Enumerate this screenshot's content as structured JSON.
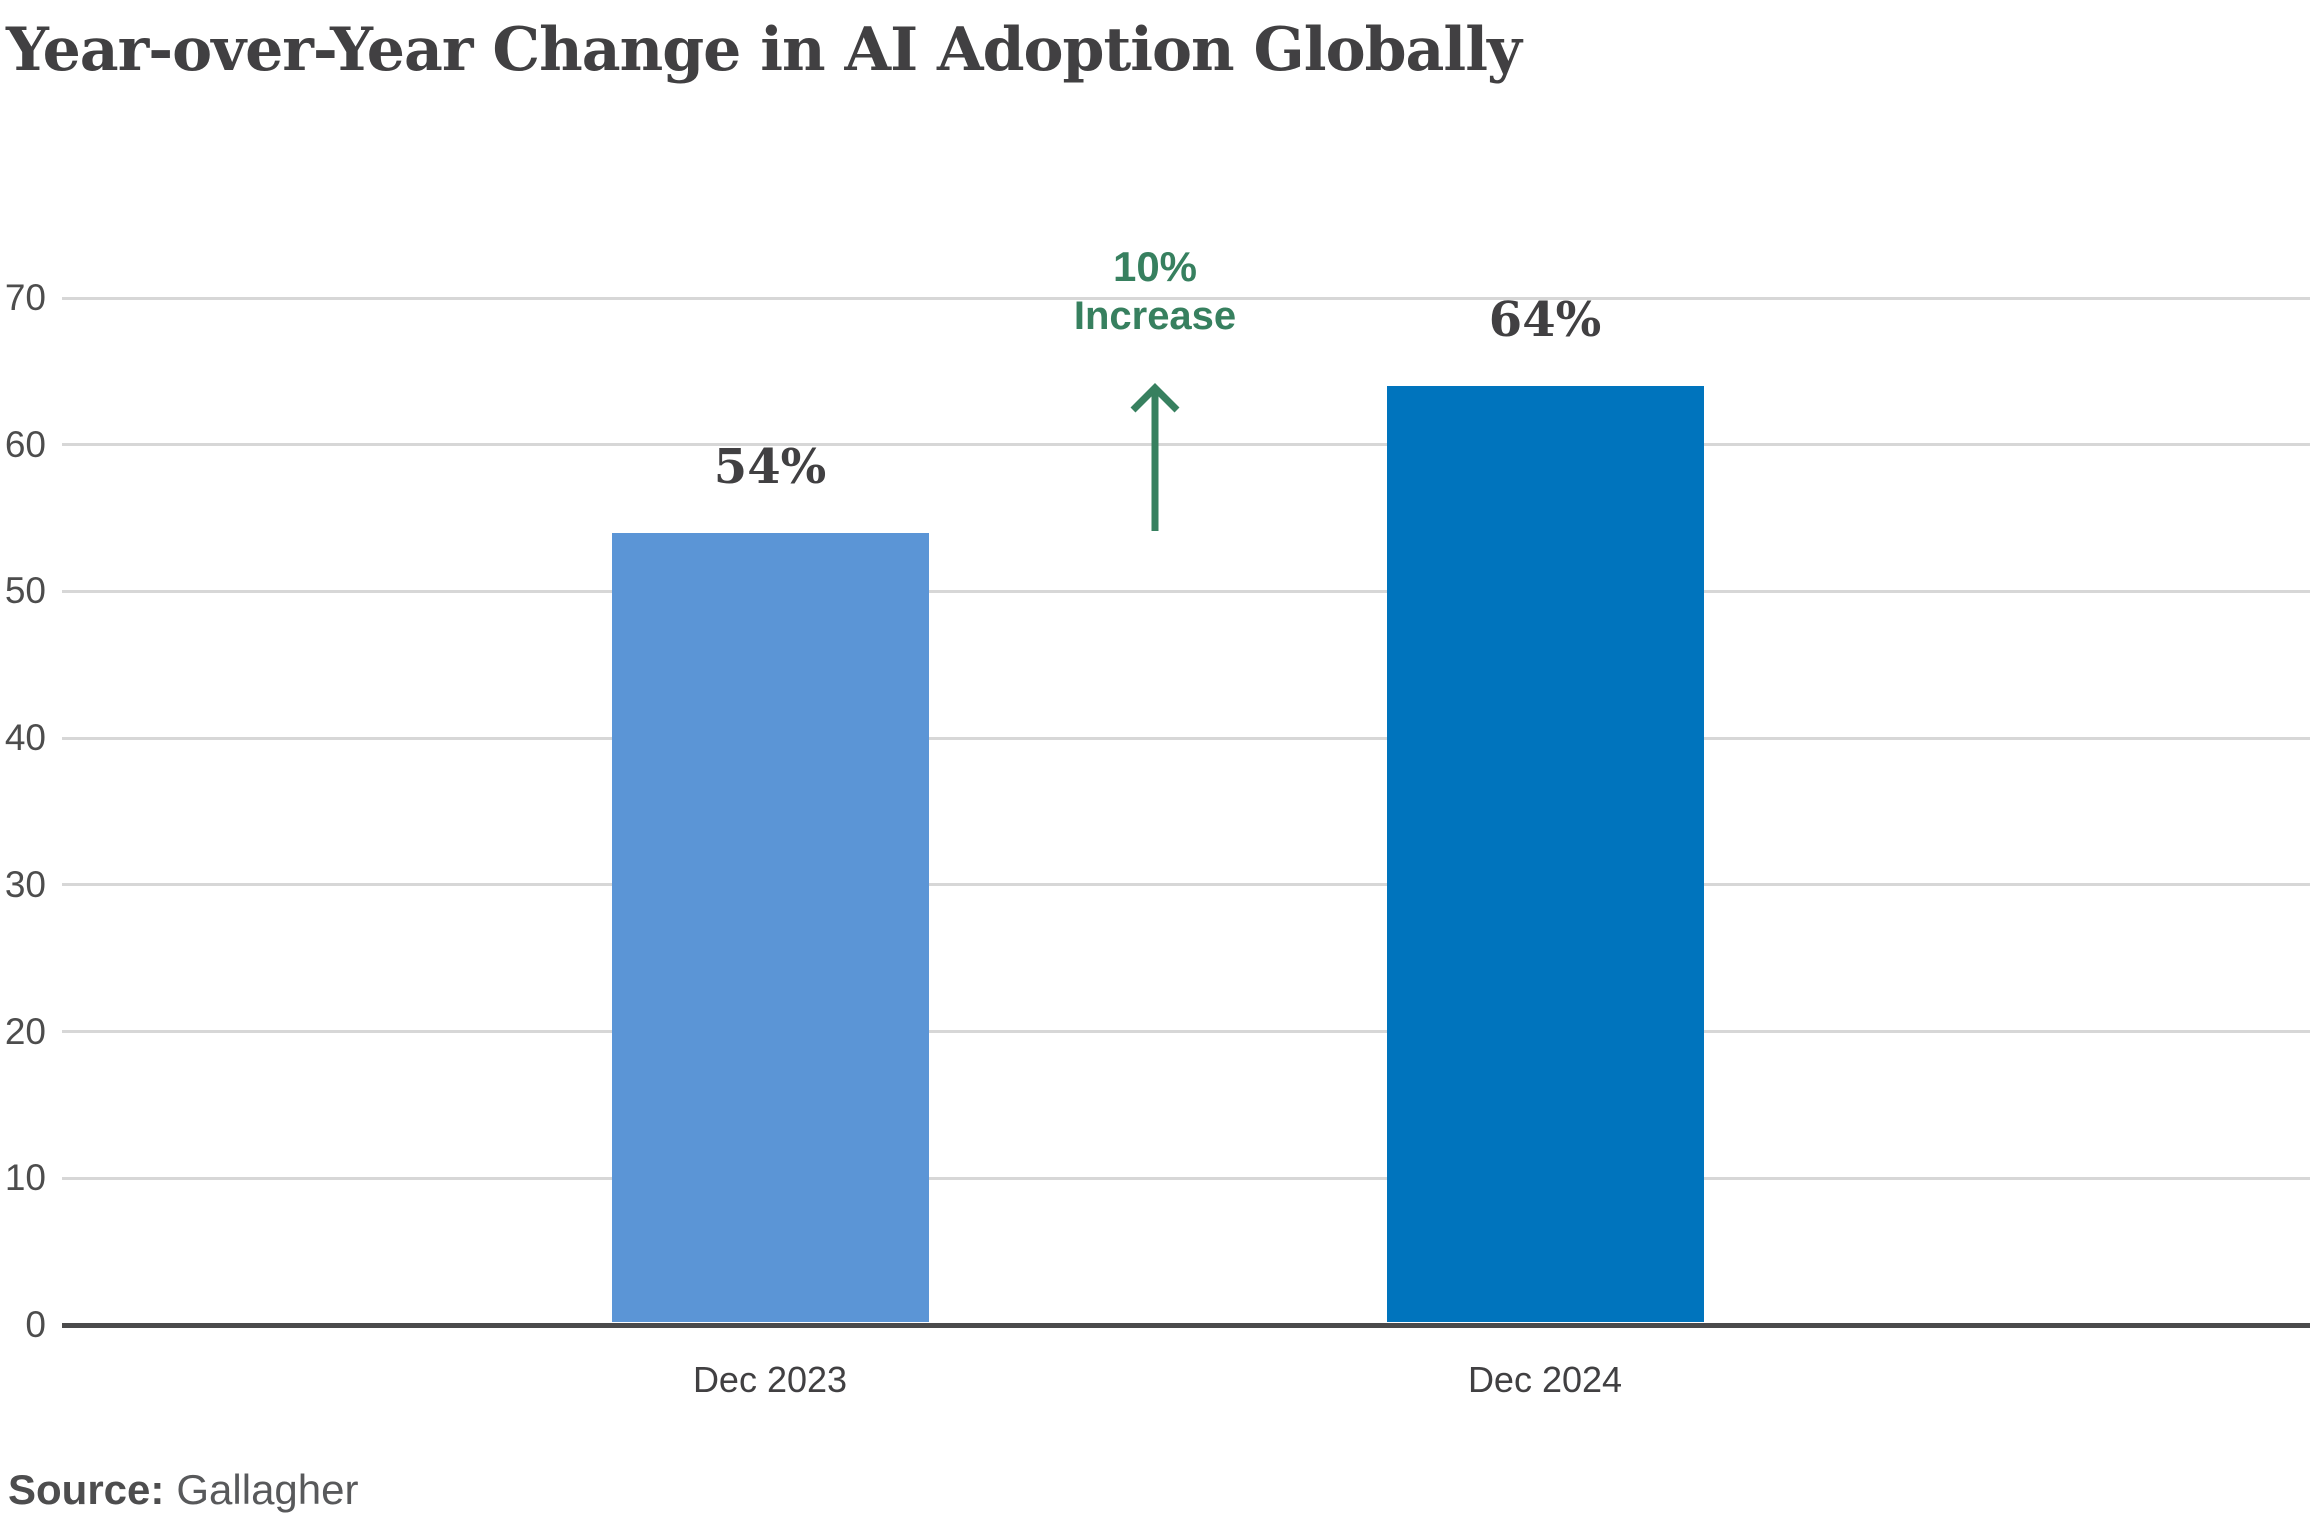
{
  "page": {
    "title": "Year-over-Year Change in AI Adoption Globally"
  },
  "annotation": {
    "line1": "10%",
    "line2": "Increase",
    "color": "#37805f"
  },
  "source": {
    "label": "Source:",
    "value": "Gallagher"
  },
  "colors": {
    "bar_2023": "#5b95d6",
    "bar_2024": "#0074bd",
    "annotation_green": "#37805f",
    "gridline": "#d7d7d7",
    "axis_line": "#4a4a4b",
    "title_text": "#414042",
    "tick_text": "#4d4d4d",
    "source_text": "#58595b"
  },
  "chart_data": {
    "type": "bar",
    "title": "Year-over-Year Change in AI Adoption Globally",
    "categories": [
      "Dec 2023",
      "Dec 2024"
    ],
    "values": [
      54,
      64
    ],
    "value_labels": [
      "54%",
      "64%"
    ],
    "series_colors": [
      "#5b95d6",
      "#0074bd"
    ],
    "annotation": {
      "text": "10% Increase",
      "color": "#37805f",
      "arrow": "up",
      "between_bars": true
    },
    "xlabel": "",
    "ylabel": "",
    "ylim": [
      0,
      70
    ],
    "yticks": [
      "0",
      "10",
      "20",
      "30",
      "40",
      "50",
      "60",
      "70"
    ],
    "grid": true,
    "legend": false,
    "source": "Gallagher"
  }
}
